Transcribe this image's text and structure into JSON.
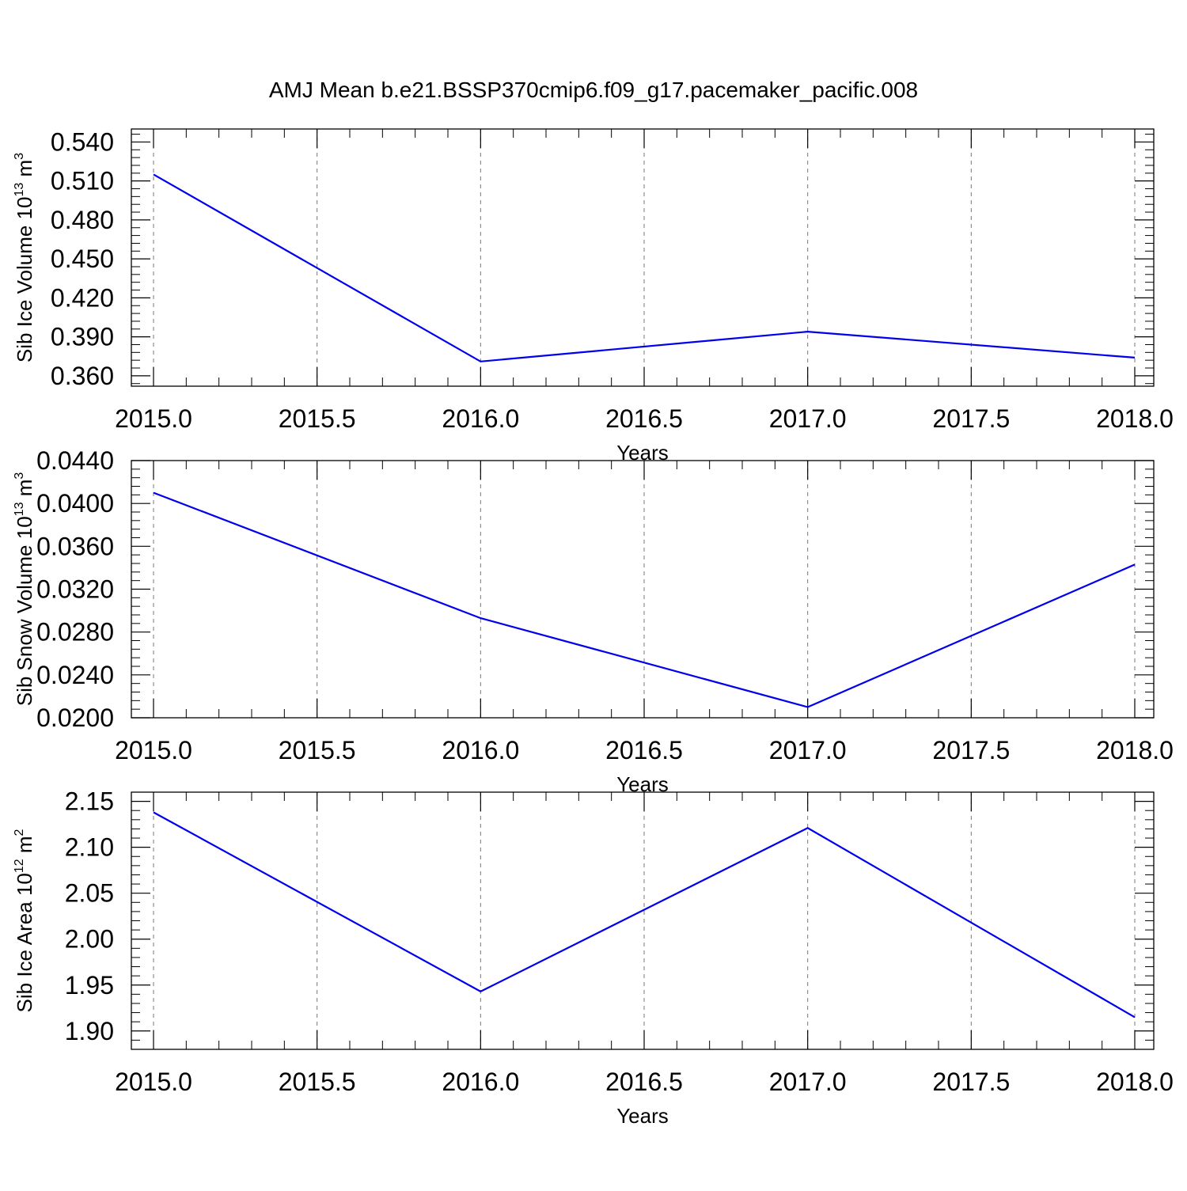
{
  "figure": {
    "title": "AMJ Mean b.e21.BSSP370cmip6.f09_g17.pacemaker_pacific.008"
  },
  "style": {
    "line_color": "#0000ee",
    "axis_color": "#000000",
    "grid_color": "#777777",
    "background": "#ffffff"
  },
  "chart_data": [
    {
      "type": "line",
      "xlabel": "Years",
      "ylabel_main": "Sib Ice Volume 10",
      "ylabel_exp": "13",
      "ylabel_unit": " m",
      "ylabel_unit_exp": "3",
      "xlim": [
        2015.0,
        2018.0
      ],
      "ylim": [
        0.352,
        0.55
      ],
      "xticks": [
        2015.0,
        2015.5,
        2016.0,
        2016.5,
        2017.0,
        2017.5,
        2018.0
      ],
      "xticklabels": [
        "2015.0",
        "2015.5",
        "2016.0",
        "2016.5",
        "2017.0",
        "2017.5",
        "2018.0"
      ],
      "yticks": [
        0.36,
        0.39,
        0.42,
        0.45,
        0.48,
        0.51,
        0.54
      ],
      "yticklabels": [
        "0.360",
        "0.390",
        "0.420",
        "0.450",
        "0.480",
        "0.510",
        "0.540"
      ],
      "grid": "vertical-dashed",
      "x": [
        2015,
        2016,
        2017,
        2018
      ],
      "series": [
        {
          "values": [
            0.515,
            0.371,
            0.394,
            0.374
          ]
        }
      ]
    },
    {
      "type": "line",
      "xlabel": "Years",
      "ylabel_main": "Sib Snow Volume 10",
      "ylabel_exp": "13",
      "ylabel_unit": " m",
      "ylabel_unit_exp": "3",
      "xlim": [
        2015.0,
        2018.0
      ],
      "ylim": [
        0.02,
        0.044
      ],
      "xticks": [
        2015.0,
        2015.5,
        2016.0,
        2016.5,
        2017.0,
        2017.5,
        2018.0
      ],
      "xticklabels": [
        "2015.0",
        "2015.5",
        "2016.0",
        "2016.5",
        "2017.0",
        "2017.5",
        "2018.0"
      ],
      "yticks": [
        0.02,
        0.024,
        0.028,
        0.032,
        0.036,
        0.04,
        0.044
      ],
      "yticklabels": [
        "0.0200",
        "0.0240",
        "0.0280",
        "0.0320",
        "0.0360",
        "0.0400",
        "0.0440"
      ],
      "grid": "vertical-dashed",
      "x": [
        2015,
        2016,
        2017,
        2018
      ],
      "series": [
        {
          "values": [
            0.041,
            0.0293,
            0.021,
            0.0343
          ]
        }
      ]
    },
    {
      "type": "line",
      "xlabel": "Years",
      "ylabel_main": "Sib Ice Area 10",
      "ylabel_exp": "12",
      "ylabel_unit": " m",
      "ylabel_unit_exp": "2",
      "xlim": [
        2015.0,
        2018.0
      ],
      "ylim": [
        1.88,
        2.16
      ],
      "xticks": [
        2015.0,
        2015.5,
        2016.0,
        2016.5,
        2017.0,
        2017.5,
        2018.0
      ],
      "xticklabels": [
        "2015.0",
        "2015.5",
        "2016.0",
        "2016.5",
        "2017.0",
        "2017.5",
        "2018.0"
      ],
      "yticks": [
        1.9,
        1.95,
        2.0,
        2.05,
        2.1,
        2.15
      ],
      "yticklabels": [
        "1.90",
        "1.95",
        "2.00",
        "2.05",
        "2.10",
        "2.15"
      ],
      "grid": "vertical-dashed",
      "x": [
        2015,
        2016,
        2017,
        2018
      ],
      "series": [
        {
          "values": [
            2.138,
            1.943,
            2.121,
            1.915
          ]
        }
      ]
    }
  ]
}
